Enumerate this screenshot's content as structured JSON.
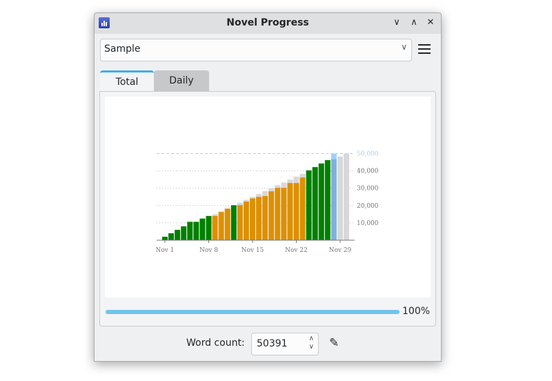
{
  "window": {
    "title": "Novel Progress"
  },
  "project_select": {
    "value": "Sample"
  },
  "tabs": [
    {
      "label": "Total",
      "active": true
    },
    {
      "label": "Daily",
      "active": false
    }
  ],
  "progress": {
    "value_percent": 100,
    "label": "100%"
  },
  "word_count": {
    "label": "Word count:",
    "value": "50391"
  },
  "colors": {
    "goal_met": "#008000",
    "behind": "#dd9000",
    "today": "#80b0e0",
    "today_over": "#a0d0ff",
    "future": "#d8d8d8",
    "goal_line": "#a8d0f0",
    "progress": "#71c3ec"
  },
  "chart_data": {
    "type": "bar",
    "categories": [
      "Nov 1",
      "Nov 2",
      "Nov 3",
      "Nov 4",
      "Nov 5",
      "Nov 6",
      "Nov 7",
      "Nov 8",
      "Nov 9",
      "Nov 10",
      "Nov 11",
      "Nov 12",
      "Nov 13",
      "Nov 14",
      "Nov 15",
      "Nov 16",
      "Nov 17",
      "Nov 18",
      "Nov 19",
      "Nov 20",
      "Nov 21",
      "Nov 22",
      "Nov 23",
      "Nov 24",
      "Nov 25",
      "Nov 26",
      "Nov 27",
      "Nov 28",
      "Nov 29",
      "Nov 30"
    ],
    "x_tick_labels": [
      "Nov 1",
      "Nov 8",
      "Nov 15",
      "Nov 22",
      "Nov 29"
    ],
    "y_tick_labels": [
      "10,000",
      "20,000",
      "30,000",
      "40,000",
      "50,000"
    ],
    "ylim": [
      0,
      50000
    ],
    "goal_total": 50000,
    "series": [
      {
        "role": "words",
        "values": [
          2000,
          4000,
          6000,
          8000,
          10600,
          10600,
          12500,
          14000,
          14000,
          16200,
          18200,
          20200,
          20200,
          22300,
          24100,
          25000,
          25500,
          28200,
          30200,
          30200,
          33000,
          33000,
          36200,
          40300,
          42200,
          44300,
          46200,
          50391,
          null,
          null
        ]
      },
      {
        "role": "goal",
        "values": [
          1700,
          3300,
          5000,
          6700,
          8300,
          10000,
          11700,
          13300,
          15000,
          16700,
          18300,
          20000,
          21700,
          23300,
          25000,
          26700,
          28300,
          30000,
          31700,
          33300,
          35000,
          36700,
          38300,
          40000,
          41700,
          43300,
          45000,
          46700,
          48300,
          50000
        ]
      }
    ],
    "status": [
      "met",
      "met",
      "met",
      "met",
      "met",
      "met",
      "met",
      "met",
      "behind",
      "behind",
      "behind",
      "met",
      "behind",
      "behind",
      "behind",
      "behind",
      "behind",
      "behind",
      "behind",
      "behind",
      "behind",
      "behind",
      "behind",
      "met",
      "met",
      "met",
      "met",
      "today",
      "future",
      "future"
    ],
    "grid": "horizontal dotted",
    "legend": "none"
  }
}
